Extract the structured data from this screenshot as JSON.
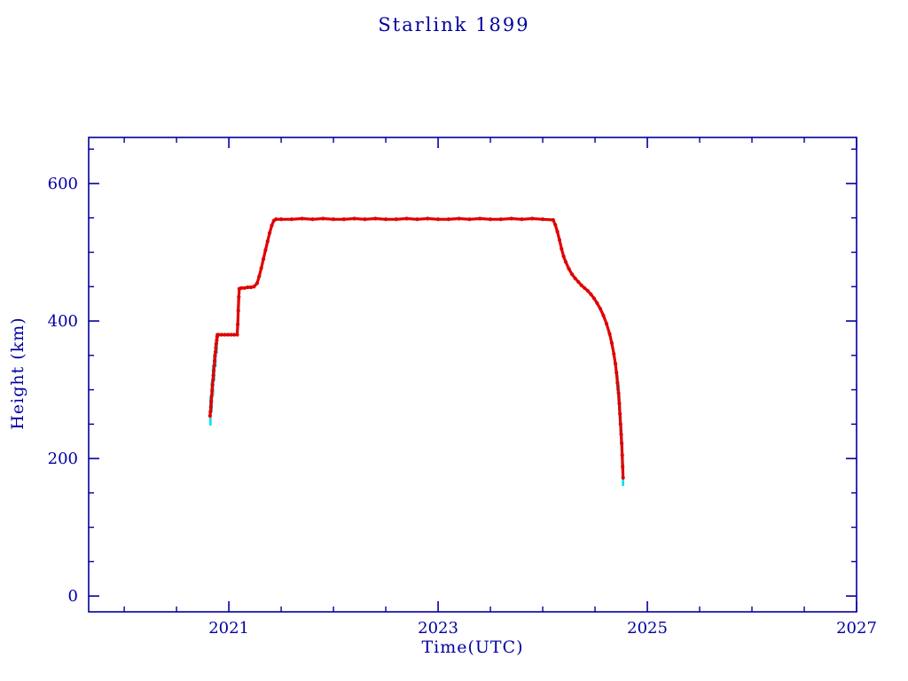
{
  "title": "Starlink 1899",
  "chart_data": {
    "type": "scatter",
    "title": "Starlink 1899",
    "xlabel": "Time(UTC)",
    "ylabel": "Height (km)",
    "xlim": [
      2019.66,
      2027
    ],
    "ylim": [
      -23,
      667
    ],
    "x_major_ticks": [
      2021,
      2023,
      2025,
      2027
    ],
    "y_major_ticks": [
      0,
      200,
      400,
      600
    ],
    "x_minor_step": 0.5,
    "y_minor_step": 50,
    "grid": false,
    "legend": "none",
    "colors": {
      "axis": "#0000a0",
      "points": "#e00000",
      "error_bars": "#00e0e8"
    },
    "series": [
      {
        "name": "height",
        "marker": "star",
        "points": [
          [
            2020.82,
            262
          ],
          [
            2020.824,
            268
          ],
          [
            2020.828,
            275
          ],
          [
            2020.832,
            283
          ],
          [
            2020.836,
            291
          ],
          [
            2020.84,
            299
          ],
          [
            2020.844,
            307
          ],
          [
            2020.848,
            314
          ],
          [
            2020.852,
            321
          ],
          [
            2020.856,
            328
          ],
          [
            2020.86,
            335
          ],
          [
            2020.864,
            342
          ],
          [
            2020.868,
            349
          ],
          [
            2020.872,
            355
          ],
          [
            2020.876,
            361
          ],
          [
            2020.88,
            367
          ],
          [
            2020.884,
            372
          ],
          [
            2020.888,
            377
          ],
          [
            2020.892,
            380
          ],
          [
            2020.9,
            380
          ],
          [
            2020.93,
            380
          ],
          [
            2020.96,
            380
          ],
          [
            2020.99,
            380
          ],
          [
            2021.02,
            380
          ],
          [
            2021.05,
            380
          ],
          [
            2021.08,
            380
          ],
          [
            2021.085,
            395
          ],
          [
            2021.09,
            415
          ],
          [
            2021.095,
            435
          ],
          [
            2021.1,
            447
          ],
          [
            2021.12,
            448
          ],
          [
            2021.15,
            448
          ],
          [
            2021.18,
            449
          ],
          [
            2021.21,
            449
          ],
          [
            2021.24,
            450
          ],
          [
            2021.27,
            455
          ],
          [
            2021.29,
            465
          ],
          [
            2021.31,
            477
          ],
          [
            2021.33,
            490
          ],
          [
            2021.35,
            503
          ],
          [
            2021.37,
            516
          ],
          [
            2021.39,
            528
          ],
          [
            2021.41,
            539
          ],
          [
            2021.43,
            546
          ],
          [
            2021.45,
            548
          ],
          [
            2021.5,
            548
          ],
          [
            2021.6,
            548
          ],
          [
            2021.7,
            549
          ],
          [
            2021.8,
            548
          ],
          [
            2021.9,
            549
          ],
          [
            2022.0,
            548
          ],
          [
            2022.1,
            548
          ],
          [
            2022.2,
            549
          ],
          [
            2022.3,
            548
          ],
          [
            2022.4,
            549
          ],
          [
            2022.5,
            548
          ],
          [
            2022.6,
            548
          ],
          [
            2022.7,
            549
          ],
          [
            2022.8,
            548
          ],
          [
            2022.9,
            549
          ],
          [
            2023.0,
            548
          ],
          [
            2023.1,
            548
          ],
          [
            2023.2,
            549
          ],
          [
            2023.3,
            548
          ],
          [
            2023.4,
            549
          ],
          [
            2023.5,
            548
          ],
          [
            2023.6,
            548
          ],
          [
            2023.7,
            549
          ],
          [
            2023.8,
            548
          ],
          [
            2023.9,
            549
          ],
          [
            2024.0,
            548
          ],
          [
            2024.1,
            547
          ],
          [
            2024.12,
            540
          ],
          [
            2024.14,
            530
          ],
          [
            2024.16,
            518
          ],
          [
            2024.18,
            505
          ],
          [
            2024.2,
            494
          ],
          [
            2024.22,
            486
          ],
          [
            2024.25,
            476
          ],
          [
            2024.28,
            468
          ],
          [
            2024.31,
            462
          ],
          [
            2024.34,
            457
          ],
          [
            2024.37,
            452
          ],
          [
            2024.4,
            448
          ],
          [
            2024.43,
            444
          ],
          [
            2024.46,
            439
          ],
          [
            2024.49,
            433
          ],
          [
            2024.52,
            426
          ],
          [
            2024.55,
            418
          ],
          [
            2024.58,
            408
          ],
          [
            2024.61,
            396
          ],
          [
            2024.64,
            381
          ],
          [
            2024.66,
            368
          ],
          [
            2024.68,
            352
          ],
          [
            2024.695,
            338
          ],
          [
            2024.705,
            325
          ],
          [
            2024.715,
            310
          ],
          [
            2024.725,
            295
          ],
          [
            2024.732,
            280
          ],
          [
            2024.738,
            265
          ],
          [
            2024.744,
            250
          ],
          [
            2024.75,
            235
          ],
          [
            2024.755,
            222
          ],
          [
            2024.76,
            205
          ],
          [
            2024.764,
            188
          ],
          [
            2024.768,
            172
          ]
        ]
      }
    ],
    "error_bars": [
      [
        2020.824,
        248,
        290
      ],
      [
        2020.836,
        268,
        312
      ],
      [
        2020.848,
        292,
        335
      ],
      [
        2020.86,
        313,
        352
      ],
      [
        2020.872,
        333,
        368
      ],
      [
        2020.884,
        352,
        382
      ],
      [
        2021.09,
        398,
        432
      ],
      [
        2024.715,
        298,
        322
      ],
      [
        2024.725,
        283,
        308
      ],
      [
        2024.732,
        268,
        293
      ],
      [
        2024.738,
        252,
        278
      ],
      [
        2024.744,
        236,
        263
      ],
      [
        2024.75,
        220,
        248
      ],
      [
        2024.755,
        205,
        237
      ],
      [
        2024.76,
        188,
        222
      ],
      [
        2024.764,
        172,
        205
      ],
      [
        2024.768,
        160,
        192
      ]
    ]
  }
}
